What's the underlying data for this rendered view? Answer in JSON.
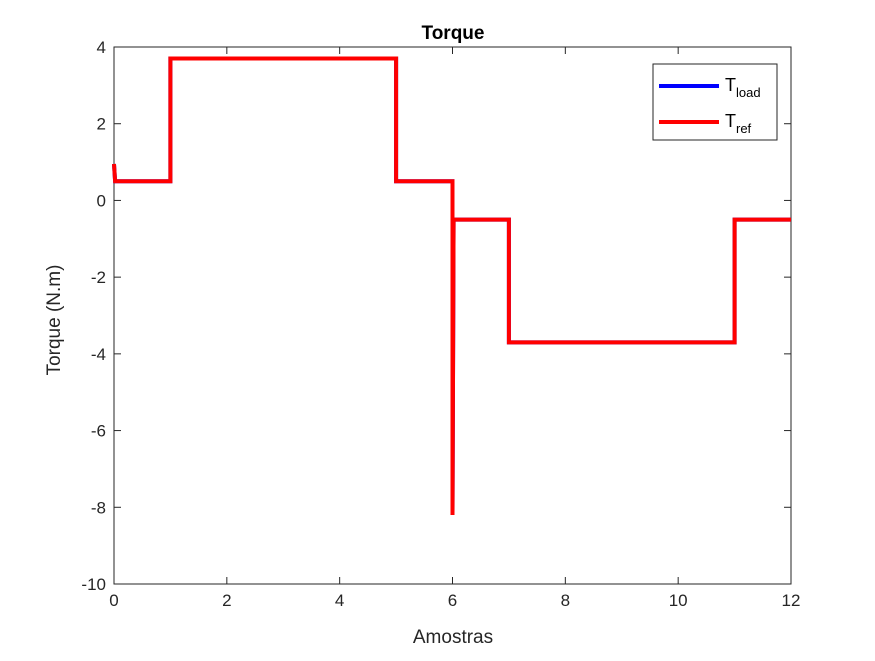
{
  "chart_data": {
    "type": "line",
    "title": "Torque",
    "xlabel": "Amostras",
    "ylabel": "Torque (N.m)",
    "xlim": [
      0,
      12
    ],
    "ylim": [
      -10,
      4
    ],
    "xticks": [
      0,
      2,
      4,
      6,
      8,
      10,
      12
    ],
    "yticks": [
      4,
      2,
      0,
      -2,
      -4,
      -6,
      -8,
      -10
    ],
    "grid": false,
    "legend_position": "top-right",
    "series": [
      {
        "label_main": "T",
        "label_sub": "load",
        "color": "#0000ff",
        "x": [
          0,
          0.02,
          1,
          1,
          5,
          5,
          6,
          6,
          6.02,
          7,
          7,
          11,
          11,
          12
        ],
        "y": [
          0.95,
          0.5,
          0.5,
          3.7,
          3.7,
          0.5,
          0.5,
          -8.2,
          -0.5,
          -0.5,
          -3.7,
          -3.7,
          -0.5,
          -0.5
        ]
      },
      {
        "label_main": "T",
        "label_sub": "ref",
        "color": "#ff0000",
        "x": [
          0,
          0.02,
          1,
          1,
          5,
          5,
          6,
          6,
          6.02,
          7,
          7,
          11,
          11,
          12
        ],
        "y": [
          0.95,
          0.5,
          0.5,
          3.7,
          3.7,
          0.5,
          0.5,
          -8.2,
          -0.5,
          -0.5,
          -3.7,
          -3.7,
          -0.5,
          -0.5
        ]
      }
    ]
  }
}
